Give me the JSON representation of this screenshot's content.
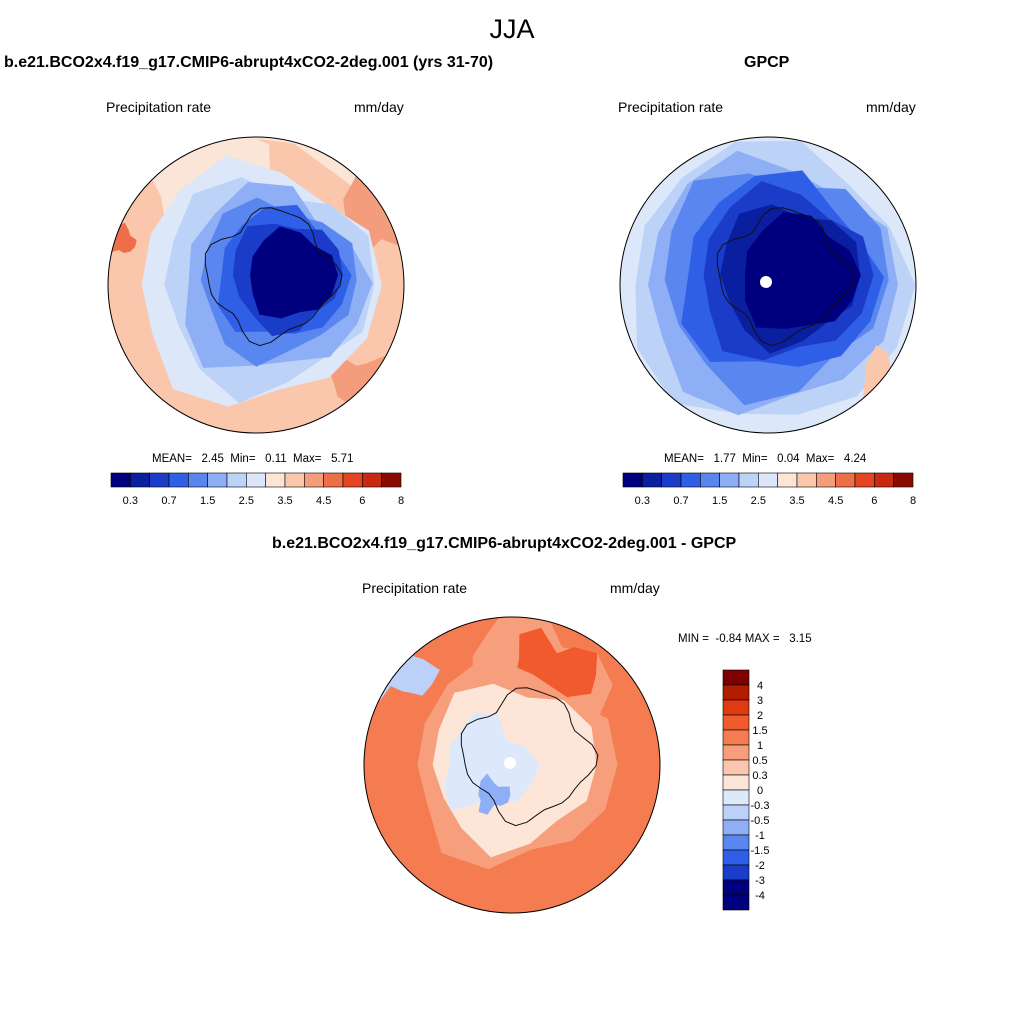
{
  "figure": {
    "title": "JJA"
  },
  "panels": [
    {
      "title": "b.e21.BCO2x4.f19_g17.CMIP6-abrupt4xCO2-2deg.001 (yrs 31-70)",
      "left_label": "Precipitation rate",
      "right_label": "mm/day",
      "stats": "MEAN=   2.45  Min=   0.11  Max=   5.71",
      "colorbar_ticks": [
        "0.3",
        "0.7",
        "1.5",
        "2.5",
        "3.5",
        "4.5",
        "6",
        "8"
      ]
    },
    {
      "title": "GPCP",
      "left_label": "Precipitation rate",
      "right_label": "mm/day",
      "stats": "MEAN=   1.77  Min=   0.04  Max=   4.24",
      "colorbar_ticks": [
        "0.3",
        "0.7",
        "1.5",
        "2.5",
        "3.5",
        "4.5",
        "6",
        "8"
      ]
    },
    {
      "title": "b.e21.BCO2x4.f19_g17.CMIP6-abrupt4xCO2-2deg.001 - GPCP",
      "left_label": "Precipitation rate",
      "right_label": "mm/day",
      "stats": "MIN =  -0.84 MAX =   3.15",
      "colorbar_ticks": [
        "4",
        "3",
        "2",
        "1.5",
        "1",
        "0.5",
        "0.3",
        "0",
        "-0.3",
        "-0.5",
        "-1",
        "-1.5",
        "-2",
        "-3",
        "-4"
      ]
    }
  ],
  "colors": {
    "abs_scale": [
      "#00007f",
      "#0a1ea0",
      "#1a3cc8",
      "#2f5fe6",
      "#5a86f0",
      "#8eaef5",
      "#bcd2f7",
      "#dce8fa",
      "#fbe5d6",
      "#fac7ad",
      "#f49d7c",
      "#ef6e4a",
      "#e64422",
      "#c72a10",
      "#8a0a00"
    ],
    "diff_scale": [
      "#7e0000",
      "#b21c00",
      "#e03a12",
      "#f05a2c",
      "#f47c50",
      "#f79e7c",
      "#fac6ad",
      "#fde6d8",
      "#dde8fb",
      "#bcd1f7",
      "#8eaef5",
      "#5a86f0",
      "#2f5fe6",
      "#1a3cc8",
      "#00007f"
    ],
    "coast": "#111111"
  }
}
